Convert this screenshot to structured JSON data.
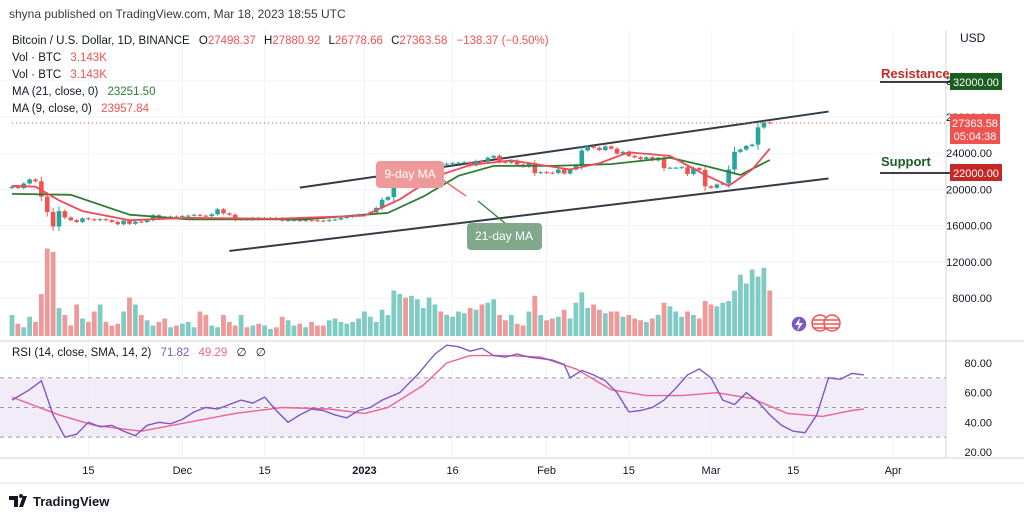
{
  "header": {
    "published": "shyna published on TradingView.com, Mar 18, 2023 18:55 UTC",
    "currency": "USD"
  },
  "legend": {
    "symbol": "Bitcoin / U.S. Dollar, 1D, BINANCE",
    "ohlc": {
      "o_label": "O",
      "o": "27498.37",
      "h_label": "H",
      "h": "27880.92",
      "l_label": "L",
      "l": "26778.66",
      "c_label": "C",
      "c": "27363.58",
      "change": "−138.37 (−0.50%)"
    },
    "vol1": {
      "label": "Vol · BTC",
      "value": "3.143K"
    },
    "vol2": {
      "label": "Vol · BTC",
      "value": "3.143K"
    },
    "ma21": {
      "label": "MA (21, close, 0)",
      "value": "23251.50"
    },
    "ma9": {
      "label": "MA (9, close, 0)",
      "value": "23957.84"
    }
  },
  "price_tag": {
    "value": "27363.58",
    "countdown": "05:04:38"
  },
  "annotations": {
    "resistance_label": "Resistance",
    "resistance_value": "32000.00",
    "support_label": "Support",
    "support_value": "22000.00",
    "ma9_label": "9-day MA",
    "ma21_label": "21-day MA"
  },
  "rsi_legend": {
    "label": "RSI (14, close, SMA, 14, 2)",
    "rsi": "71.82",
    "sma": "49.29",
    "na1": "∅",
    "na2": "∅"
  },
  "footer": {
    "brand": "TradingView"
  },
  "colors": {
    "up": "#26a69a",
    "down": "#ef5350",
    "ma9": "#f04a5a",
    "ma21": "#2e7d32",
    "rsi": "#7e57c2",
    "rsi_sma": "#f06292",
    "resistance": "#c62828",
    "support": "#1b5e20"
  },
  "chart_data": {
    "type": "candlestick",
    "price_axis": {
      "ylim": [
        4000,
        34000
      ],
      "ticks": [
        8000,
        12000,
        16000,
        20000,
        24000,
        28000,
        32000
      ],
      "tick_labels": [
        "8000.00",
        "12000.00",
        "16000.00",
        "20000.00",
        "24000.00",
        "28000.00",
        "32000.00"
      ]
    },
    "time_axis": {
      "range": [
        "2022-11-02",
        "2023-04-10"
      ],
      "ticks": [
        "2022-11-15",
        "2022-12-01",
        "2022-12-15",
        "2023-01-01",
        "2023-01-16",
        "2023-02-01",
        "2023-02-15",
        "2023-03-01",
        "2023-03-15",
        "2023-04-01"
      ],
      "tick_labels": [
        "15",
        "Dec",
        "15",
        "2023",
        "16",
        "Feb",
        "15",
        "Mar",
        "15",
        "Apr"
      ]
    },
    "ohlc_start_date": "2022-11-02",
    "close": [
      20300,
      20150,
      20650,
      21100,
      20900,
      19200,
      17500,
      15900,
      17600,
      16900,
      16600,
      16400,
      16800,
      16700,
      16600,
      16700,
      16600,
      16400,
      16150,
      16550,
      16200,
      16450,
      16400,
      16600,
      17150,
      16950,
      16850,
      17000,
      16950,
      17050,
      17100,
      17200,
      17100,
      17050,
      17250,
      17800,
      17350,
      17200,
      16650,
      16750,
      16650,
      16850,
      16800,
      16830,
      16840,
      16830,
      16550,
      16600,
      16600,
      16550,
      16600,
      16580,
      16550,
      16520,
      16600,
      16680,
      16850,
      16950,
      17100,
      17200,
      17250,
      17450,
      17950,
      18850,
      19150,
      20950,
      21050,
      20900,
      20950,
      21150,
      21250,
      22700,
      22850,
      22750,
      22850,
      22900,
      22950,
      23000,
      22650,
      23150,
      23050,
      23500,
      23700,
      23050,
      22950,
      23200,
      22750,
      22500,
      22900,
      21800,
      21900,
      21850,
      21800,
      22200,
      21750,
      22200,
      22650,
      24300,
      24750,
      24600,
      24350,
      24750,
      24500,
      23950,
      24150,
      23700,
      23550,
      23350,
      23550,
      23200,
      23500,
      22350,
      22400,
      22400,
      22450,
      21700,
      22350,
      22150,
      20350,
      20180,
      20550,
      20650,
      22200,
      24150,
      24400,
      24800,
      24950,
      26850,
      27400,
      27363
    ],
    "ma9_points": [
      [
        0,
        20400
      ],
      [
        4,
        20300
      ],
      [
        8,
        18800
      ],
      [
        12,
        17600
      ],
      [
        20,
        16600
      ],
      [
        30,
        16850
      ],
      [
        45,
        16750
      ],
      [
        60,
        17100
      ],
      [
        66,
        18900
      ],
      [
        72,
        21400
      ],
      [
        78,
        22700
      ],
      [
        85,
        23200
      ],
      [
        95,
        22200
      ],
      [
        100,
        22900
      ],
      [
        105,
        24100
      ],
      [
        112,
        23700
      ],
      [
        118,
        21600
      ],
      [
        122,
        20400
      ],
      [
        126,
        22200
      ],
      [
        129,
        24500
      ]
    ],
    "ma21_points": [
      [
        0,
        19500
      ],
      [
        10,
        19400
      ],
      [
        20,
        17200
      ],
      [
        30,
        16700
      ],
      [
        50,
        16700
      ],
      [
        64,
        17400
      ],
      [
        70,
        19200
      ],
      [
        76,
        21500
      ],
      [
        82,
        22600
      ],
      [
        92,
        22600
      ],
      [
        102,
        22800
      ],
      [
        112,
        23500
      ],
      [
        118,
        22600
      ],
      [
        124,
        21600
      ],
      [
        129,
        23250
      ]
    ],
    "channel": {
      "upper": [
        [
          "2022-12-21",
          20200
        ],
        [
          "2023-03-21",
          28600
        ]
      ],
      "lower": [
        [
          "2022-12-09",
          13200
        ],
        [
          "2023-03-21",
          21200
        ]
      ]
    },
    "volume_axis": {
      "ylim": [
        0,
        400
      ]
    },
    "volume": [
      60,
      35,
      25,
      55,
      40,
      120,
      250,
      240,
      80,
      60,
      30,
      90,
      50,
      40,
      70,
      90,
      40,
      30,
      35,
      70,
      110,
      90,
      60,
      45,
      30,
      40,
      50,
      25,
      30,
      35,
      40,
      25,
      70,
      60,
      30,
      25,
      60,
      40,
      30,
      60,
      25,
      30,
      35,
      30,
      20,
      25,
      55,
      45,
      30,
      35,
      25,
      40,
      30,
      30,
      45,
      50,
      40,
      35,
      40,
      50,
      70,
      55,
      40,
      75,
      60,
      130,
      120,
      110,
      115,
      105,
      80,
      110,
      90,
      70,
      60,
      55,
      70,
      65,
      80,
      75,
      90,
      95,
      105,
      60,
      45,
      60,
      35,
      30,
      70,
      115,
      60,
      45,
      50,
      55,
      75,
      50,
      95,
      125,
      80,
      90,
      75,
      65,
      70,
      70,
      55,
      60,
      50,
      45,
      40,
      50,
      60,
      95,
      85,
      70,
      55,
      70,
      60,
      50,
      100,
      90,
      85,
      95,
      100,
      130,
      175,
      150,
      190,
      170,
      195,
      130
    ],
    "rsi_axis": {
      "ylim": [
        20,
        95
      ],
      "ticks": [
        20,
        40,
        60,
        80
      ],
      "tick_labels": [
        "20.00",
        "40.00",
        "60.00",
        "80.00"
      ],
      "band": [
        30,
        70
      ]
    },
    "rsi_points": [
      [
        0,
        55
      ],
      [
        3,
        62
      ],
      [
        5,
        68
      ],
      [
        7,
        45
      ],
      [
        9,
        30
      ],
      [
        11,
        32
      ],
      [
        13,
        40
      ],
      [
        15,
        37
      ],
      [
        17,
        38
      ],
      [
        19,
        34
      ],
      [
        21,
        31
      ],
      [
        23,
        38
      ],
      [
        25,
        40
      ],
      [
        27,
        39
      ],
      [
        29,
        42
      ],
      [
        31,
        47
      ],
      [
        33,
        50
      ],
      [
        35,
        49
      ],
      [
        37,
        52
      ],
      [
        39,
        55
      ],
      [
        41,
        53
      ],
      [
        43,
        57
      ],
      [
        45,
        48
      ],
      [
        47,
        40
      ],
      [
        49,
        45
      ],
      [
        51,
        49
      ],
      [
        53,
        48
      ],
      [
        55,
        45
      ],
      [
        57,
        43
      ],
      [
        59,
        48
      ],
      [
        61,
        50
      ],
      [
        63,
        55
      ],
      [
        66,
        60
      ],
      [
        69,
        72
      ],
      [
        72,
        86
      ],
      [
        74,
        92
      ],
      [
        76,
        91
      ],
      [
        78,
        88
      ],
      [
        80,
        90
      ],
      [
        82,
        85
      ],
      [
        84,
        84
      ],
      [
        86,
        86
      ],
      [
        88,
        84
      ],
      [
        90,
        83
      ],
      [
        92,
        82
      ],
      [
        94,
        79
      ],
      [
        95,
        70
      ],
      [
        97,
        75
      ],
      [
        99,
        72
      ],
      [
        101,
        68
      ],
      [
        103,
        60
      ],
      [
        105,
        47
      ],
      [
        107,
        48
      ],
      [
        109,
        50
      ],
      [
        111,
        55
      ],
      [
        113,
        63
      ],
      [
        115,
        72
      ],
      [
        117,
        76
      ],
      [
        119,
        70
      ],
      [
        121,
        55
      ],
      [
        123,
        52
      ],
      [
        125,
        60
      ],
      [
        127,
        54
      ],
      [
        129,
        45
      ],
      [
        131,
        38
      ],
      [
        133,
        34
      ],
      [
        135,
        33
      ],
      [
        137,
        45
      ],
      [
        139,
        70
      ],
      [
        141,
        69
      ],
      [
        143,
        73
      ],
      [
        145,
        72
      ]
    ],
    "rsi_sma_points": [
      [
        0,
        57
      ],
      [
        8,
        45
      ],
      [
        14,
        38
      ],
      [
        22,
        34
      ],
      [
        30,
        40
      ],
      [
        38,
        46
      ],
      [
        46,
        50
      ],
      [
        54,
        49
      ],
      [
        60,
        46
      ],
      [
        64,
        50
      ],
      [
        70,
        65
      ],
      [
        74,
        80
      ],
      [
        78,
        85
      ],
      [
        84,
        85
      ],
      [
        90,
        84
      ],
      [
        96,
        76
      ],
      [
        102,
        62
      ],
      [
        108,
        58
      ],
      [
        114,
        58
      ],
      [
        120,
        60
      ],
      [
        126,
        56
      ],
      [
        132,
        46
      ],
      [
        138,
        44
      ],
      [
        143,
        48
      ],
      [
        145,
        49
      ]
    ],
    "rsi_days": 145
  }
}
